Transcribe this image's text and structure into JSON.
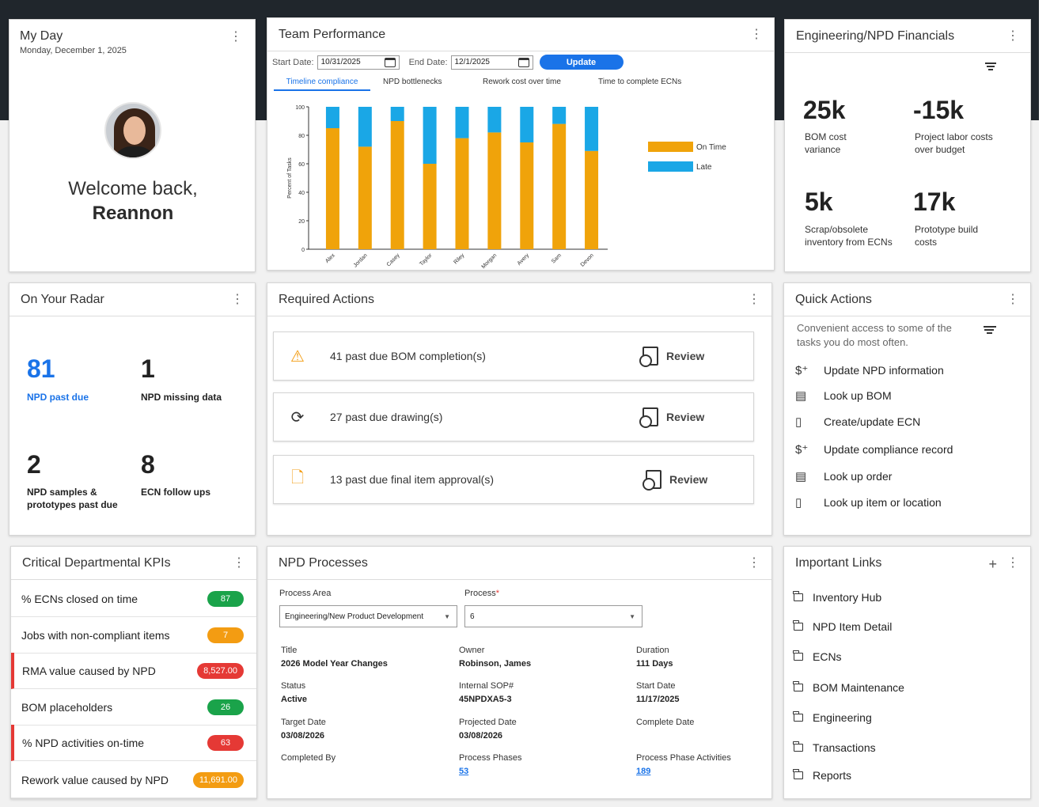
{
  "my_day": {
    "title": "My Day",
    "date": "Monday, December 1, 2025",
    "welcome_line1": "Welcome back,",
    "welcome_name": "Reannon"
  },
  "team_performance": {
    "title": "Team Performance",
    "start_label": "Start Date:",
    "start_value": "10/31/2025",
    "end_label": "End Date:",
    "end_value": "12/1/2025",
    "update_label": "Update",
    "tabs": [
      "Timeline compliance",
      "NPD bottlenecks",
      "Rework cost over time",
      "Time to complete ECNs"
    ],
    "active_tab": 0
  },
  "chart_data": {
    "type": "bar",
    "stacked": true,
    "categories": [
      "Alex",
      "Jordan",
      "Casey",
      "Taylor",
      "Riley",
      "Morgan",
      "Avery",
      "Sam",
      "Devon"
    ],
    "series": [
      {
        "name": "On Time",
        "color": "#f0a30a",
        "values": [
          85,
          72,
          90,
          60,
          78,
          82,
          75,
          88,
          69
        ]
      },
      {
        "name": "Late",
        "color": "#1aa7e6",
        "values": [
          15,
          28,
          10,
          40,
          22,
          18,
          25,
          12,
          31
        ]
      }
    ],
    "ylabel": "Percent of Tasks",
    "ylim": [
      0,
      100
    ],
    "yticks": [
      0,
      20,
      40,
      60,
      80,
      100
    ],
    "legend": "right"
  },
  "financials": {
    "title": "Engineering/NPD Financials",
    "items": [
      {
        "value": "25k",
        "label": "BOM cost variance"
      },
      {
        "value": "-15k",
        "label": "Project labor costs over budget"
      },
      {
        "value": "5k",
        "label": "Scrap/obsolete inventory from ECNs"
      },
      {
        "value": "17k",
        "label": "Prototype build costs"
      }
    ]
  },
  "radar": {
    "title": "On Your Radar",
    "items": [
      {
        "value": "81",
        "label": "NPD past due"
      },
      {
        "value": "1",
        "label": "NPD missing data"
      },
      {
        "value": "2",
        "label": "NPD samples & prototypes past due"
      },
      {
        "value": "8",
        "label": "ECN follow ups"
      }
    ]
  },
  "required_actions": {
    "title": "Required Actions",
    "items": [
      {
        "icon": "warning-icon",
        "text": "41 past due BOM completion(s)",
        "action": "Review"
      },
      {
        "icon": "refresh-icon",
        "text": "27 past due drawing(s)",
        "action": "Review"
      },
      {
        "icon": "document-icon",
        "text": "13 past due final item approval(s)",
        "action": "Review"
      }
    ]
  },
  "quick_actions": {
    "title": "Quick Actions",
    "description": "Convenient access to some of the tasks you do most often.",
    "items": [
      {
        "icon": "dollar-plus-icon",
        "glyph": "$⁺",
        "label": "Update NPD information"
      },
      {
        "icon": "list-icon",
        "glyph": "▤",
        "label": "Look up BOM"
      },
      {
        "icon": "clipboard-icon",
        "glyph": "▯",
        "label": "Create/update ECN"
      },
      {
        "icon": "dollar-plus-icon",
        "glyph": "$⁺",
        "label": "Update compliance record"
      },
      {
        "icon": "list-icon",
        "glyph": "▤",
        "label": "Look up order"
      },
      {
        "icon": "clipboard-icon",
        "glyph": "▯",
        "label": "Look up item or location"
      }
    ]
  },
  "kpis": {
    "title": "Critical Departmental KPIs",
    "items": [
      {
        "label": "% ECNs closed on time",
        "value": "87",
        "color": "#1aa34a",
        "alert": false
      },
      {
        "label": "Jobs with non-compliant items",
        "value": "7",
        "color": "#f39c12",
        "alert": false
      },
      {
        "label": "RMA value caused by NPD",
        "value": "8,527.00",
        "color": "#e53935",
        "alert": true
      },
      {
        "label": "BOM placeholders",
        "value": "26",
        "color": "#1aa34a",
        "alert": false
      },
      {
        "label": "% NPD activities on-time",
        "value": "63",
        "color": "#e53935",
        "alert": true
      },
      {
        "label": "Rework value caused by NPD",
        "value": "11,691.00",
        "color": "#f39c12",
        "alert": false
      }
    ]
  },
  "npd_processes": {
    "title": "NPD Processes",
    "process_area_label": "Process Area",
    "process_area_value": "Engineering/New Product Development",
    "process_label": "Process",
    "process_value": "6",
    "fields": [
      {
        "label": "Title",
        "value": "2026 Model Year Changes"
      },
      {
        "label": "Owner",
        "value": "Robinson, James"
      },
      {
        "label": "Duration",
        "value": "111 Days"
      },
      {
        "label": "Status",
        "value": "Active"
      },
      {
        "label": "Internal SOP#",
        "value": "45NPDXA5-3"
      },
      {
        "label": "Start Date",
        "value": "11/17/2025"
      },
      {
        "label": "Target Date",
        "value": "03/08/2026"
      },
      {
        "label": "Projected Date",
        "value": "03/08/2026"
      },
      {
        "label": "Complete Date",
        "value": ""
      },
      {
        "label": "Completed By",
        "value": ""
      },
      {
        "label": "Process Phases",
        "value": "53",
        "link": true
      },
      {
        "label": "Process Phase Activities",
        "value": "189",
        "link": true
      }
    ]
  },
  "important_links": {
    "title": "Important Links",
    "items": [
      "Inventory Hub",
      "NPD Item Detail",
      "ECNs",
      "BOM Maintenance",
      "Engineering",
      "Transactions",
      "Reports"
    ]
  }
}
